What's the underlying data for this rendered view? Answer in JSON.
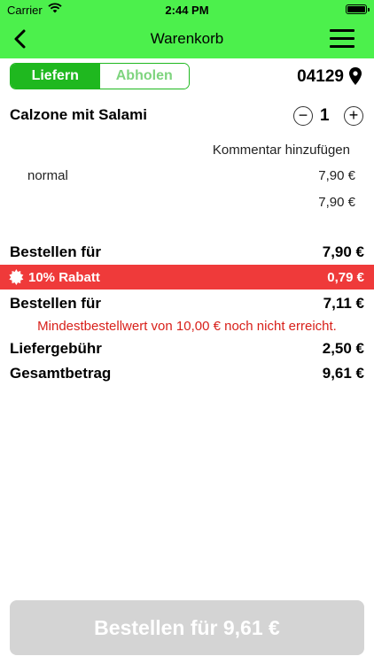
{
  "status_bar": {
    "carrier": "Carrier",
    "time": "2:44 PM"
  },
  "nav": {
    "title": "Warenkorb"
  },
  "segments": {
    "deliver": "Liefern",
    "pickup": "Abholen",
    "active": "deliver"
  },
  "location": {
    "zip": "04129"
  },
  "item": {
    "name": "Calzone mit Salami",
    "quantity": "1",
    "minus": "−",
    "plus": "+",
    "comment": "Kommentar hinzufügen",
    "variant": "normal",
    "variant_price": "7,90 €",
    "total": "7,90 €"
  },
  "summary": {
    "order_for_label": "Bestellen für",
    "order_for_value": "7,90 €",
    "discount_label": "10% Rabatt",
    "discount_value": "0,79 €",
    "order_for2_label": "Bestellen für",
    "order_for2_value": "7,11 €",
    "min_order_warning": "Mindestbestellwert von 10,00 € noch nicht erreicht.",
    "delivery_fee_label": "Liefergebühr",
    "delivery_fee_value": "2,50 €",
    "total_label": "Gesamtbetrag",
    "total_value": "9,61 €"
  },
  "order_button": {
    "label": "Bestellen für 9,61 €"
  },
  "colors": {
    "header": "#4cf04c",
    "accent": "#1fb81f",
    "discount": "#ef3a3a",
    "warning": "#d8201a",
    "disabled_button": "#d4d4d4"
  }
}
